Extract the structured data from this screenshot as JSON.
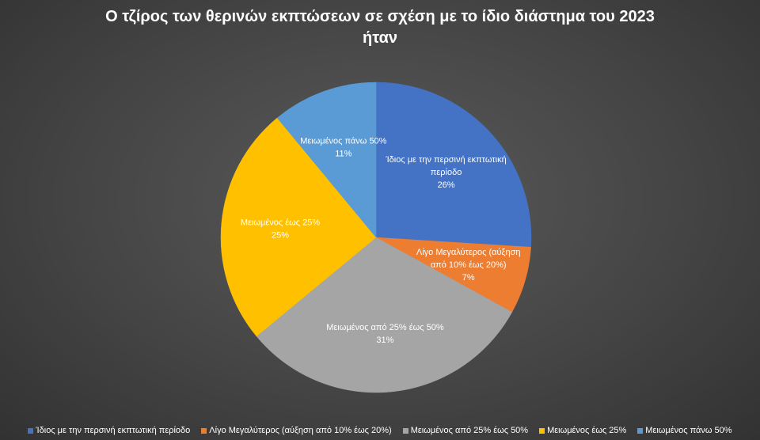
{
  "chart_data": {
    "type": "pie",
    "title": "Ο τζίρος των θερινών εκπτώσεων σε σχέση με το ίδιο διάστημα του 2023 ήταν",
    "title_lines": [
      "Ο τζίρος των θερινών εκπτώσεων σε σχέση με το ίδιο διάστημα του 2023",
      "ήταν"
    ],
    "legend_position": "bottom",
    "slices": [
      {
        "name": "Ίδιος με την περσινή εκπτωτική περίοδο",
        "label_lines": [
          "Ίδιος με την περσινή εκπτωτική",
          "περίοδο"
        ],
        "value": 26,
        "value_label": "26%",
        "color": "#4472C4"
      },
      {
        "name": "Λίγο Μεγαλύτερος (αύξηση από 10% έως 20%)",
        "label_lines": [
          "Λίγο Μεγαλύτερος (αύξηση",
          "από 10% έως 20%)"
        ],
        "value": 7,
        "value_label": "7%",
        "color": "#ED7D31"
      },
      {
        "name": "Μειωμένος από 25% έως 50%",
        "label_lines": [
          "Μειωμένος από 25% έως 50%"
        ],
        "value": 31,
        "value_label": "31%",
        "color": "#A5A5A5"
      },
      {
        "name": "Μειωμένος έως 25%",
        "label_lines": [
          "Μειωμένος έως 25%"
        ],
        "value": 25,
        "value_label": "25%",
        "color": "#FFC000"
      },
      {
        "name": "Μειωμένος πάνω 50%",
        "label_lines": [
          "Μειωμένος πάνω 50%"
        ],
        "value": 11,
        "value_label": "11%",
        "color": "#5B9BD5"
      }
    ]
  }
}
